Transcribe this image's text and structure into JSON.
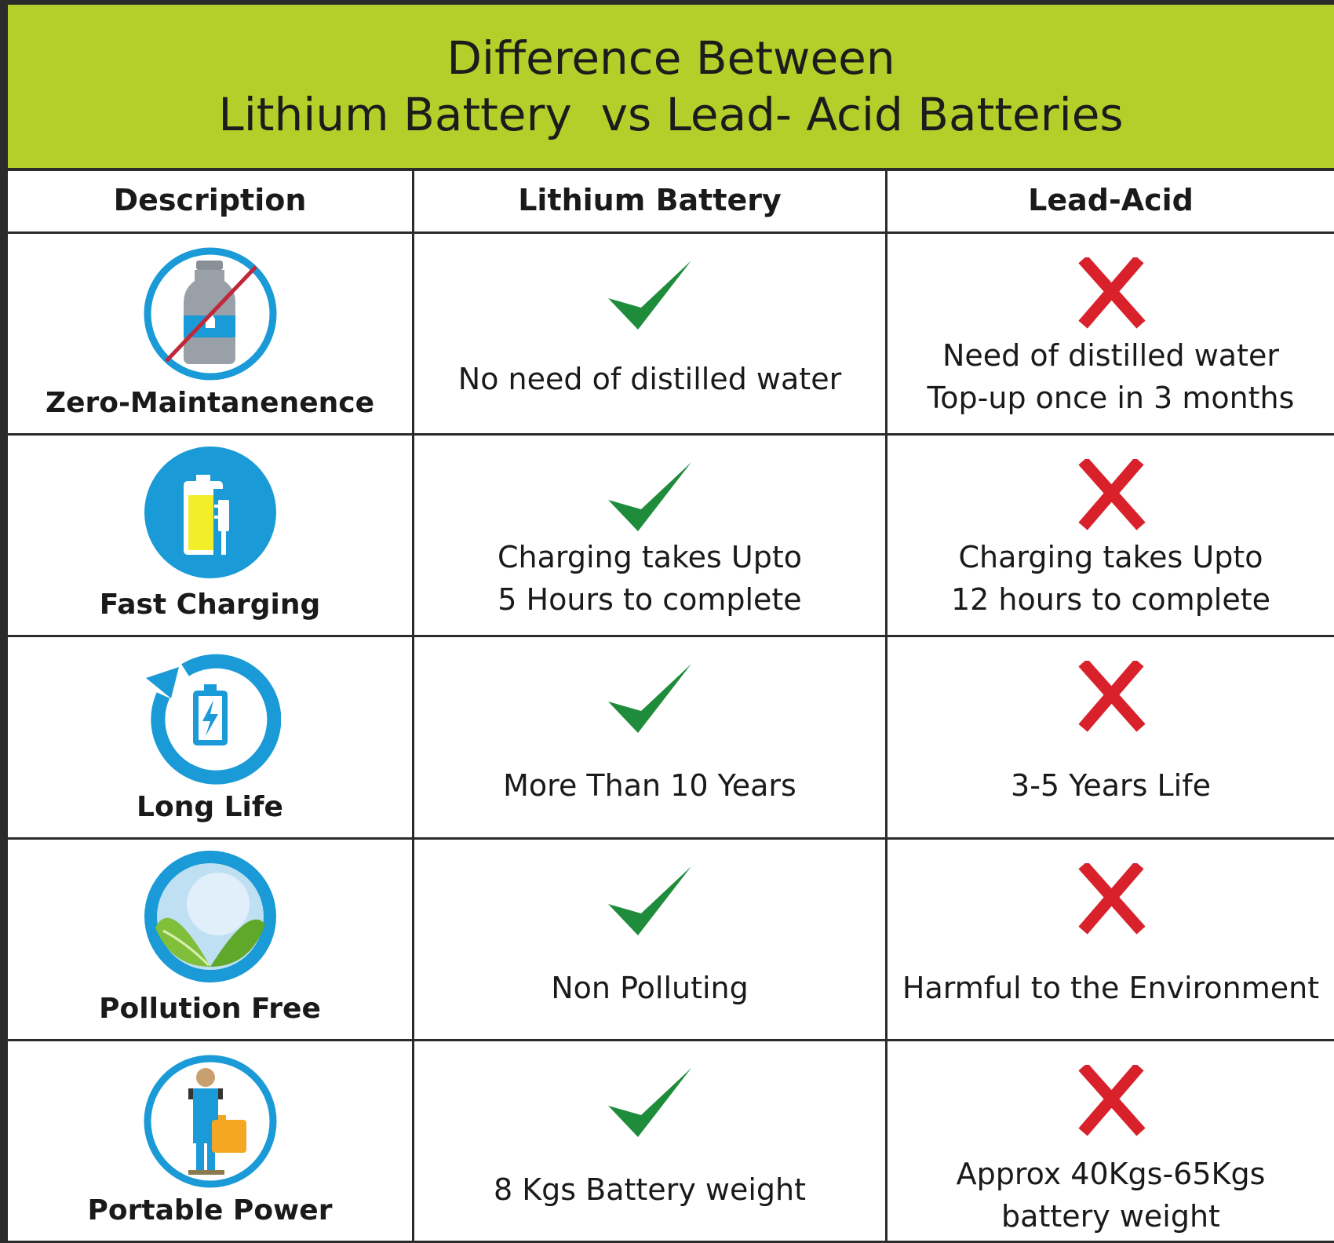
{
  "title": {
    "line1": "Difference Between",
    "line2": "Lithium Battery  vs Lead- Acid Batteries"
  },
  "colors": {
    "banner": "#b5cf2a",
    "check": "#1e8c3a",
    "cross": "#d8212a",
    "icon_ring": "#1a9ad6"
  },
  "headers": {
    "description": "Description",
    "lithium": "Lithium Battery",
    "lead_acid": "Lead-Acid"
  },
  "rows": [
    {
      "description": "Zero-Maintanenence",
      "icon": "no-water-bottle-icon",
      "lithium": [
        "No need of distilled water"
      ],
      "lead_acid": [
        "Need of distilled water",
        "Top-up once in 3 months"
      ]
    },
    {
      "description": "Fast Charging",
      "icon": "battery-plug-icon",
      "lithium": [
        "Charging takes Upto",
        "5 Hours to complete"
      ],
      "lead_acid": [
        "Charging takes Upto",
        "12 hours to complete"
      ]
    },
    {
      "description": "Long Life",
      "icon": "battery-cycle-icon",
      "lithium": [
        "More Than 10 Years"
      ],
      "lead_acid": [
        "3-5 Years Life"
      ]
    },
    {
      "description": "Pollution Free",
      "icon": "globe-leaves-icon",
      "lithium": [
        "Non Polluting"
      ],
      "lead_acid": [
        "Harmful to the Environment"
      ]
    },
    {
      "description": "Portable Power",
      "icon": "person-carrying-battery-icon",
      "lithium": [
        "8 Kgs Battery weight"
      ],
      "lead_acid": [
        "Approx 40Kgs-65Kgs",
        "battery weight"
      ]
    }
  ]
}
